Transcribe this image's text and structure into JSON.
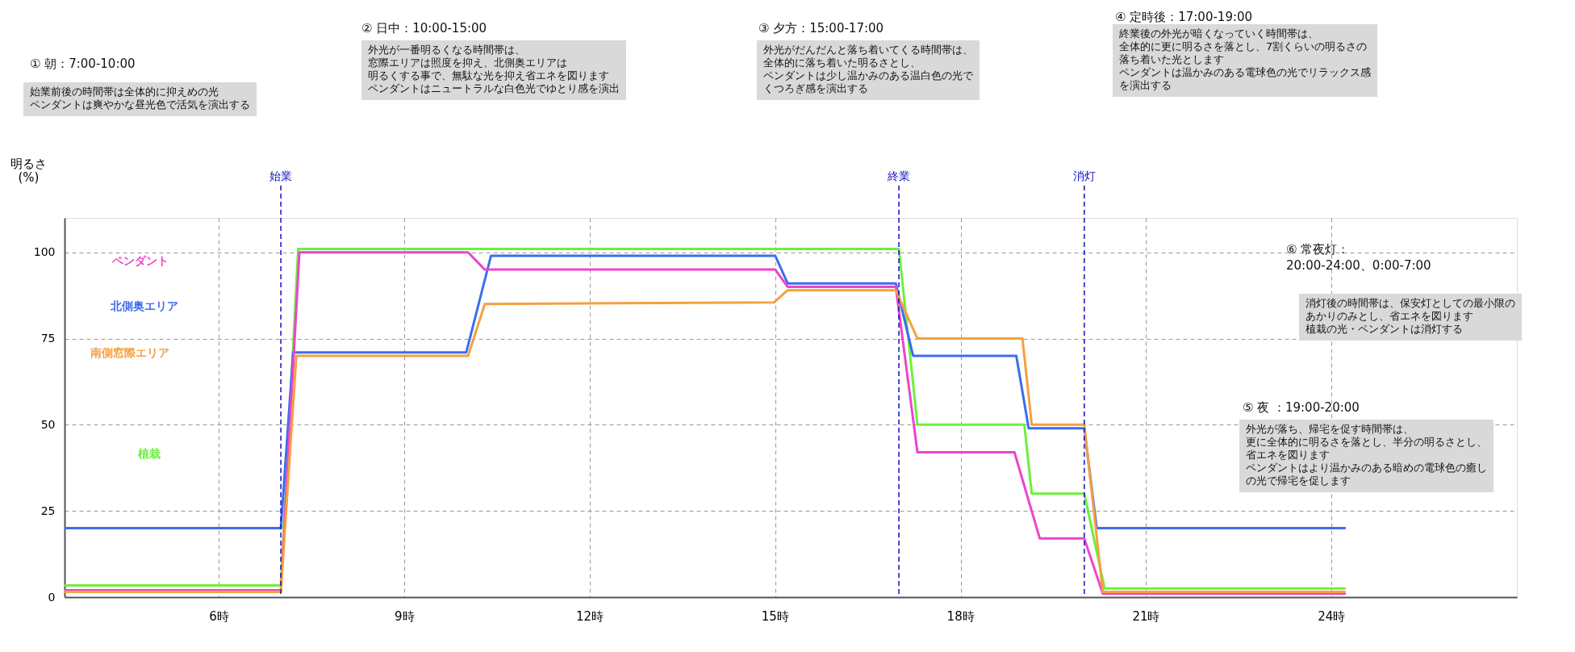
{
  "chart_data": {
    "type": "line",
    "ylabel": "明るさ\n(%)",
    "xlim": [
      3.5,
      27
    ],
    "ylim": [
      0,
      110
    ],
    "xticks": [
      {
        "value": 6,
        "label": "6時"
      },
      {
        "value": 9,
        "label": "9時"
      },
      {
        "value": 12,
        "label": "12時"
      },
      {
        "value": 15,
        "label": "15時"
      },
      {
        "value": 18,
        "label": "18時"
      },
      {
        "value": 21,
        "label": "21時"
      },
      {
        "value": 24,
        "label": "24時"
      }
    ],
    "yticks": [
      0,
      25,
      50,
      75,
      100
    ],
    "grid": true,
    "legend": false,
    "marker": "none",
    "line_style": "solid",
    "series": [
      {
        "name": "植栽",
        "color": "#6cf03c",
        "x": [
          3.5,
          7.0,
          7.28,
          17.0,
          17.3,
          19.03,
          19.15,
          20.0,
          20.33,
          24.23
        ],
        "values": [
          3.4,
          3.4,
          101,
          101,
          50,
          50,
          30,
          30,
          2.5,
          2.5
        ]
      },
      {
        "name": "北側奥エリア",
        "color": "#3c6cf0",
        "x": [
          3.5,
          7.0,
          7.2,
          10.0,
          10.4,
          15.0,
          15.2,
          16.95,
          17.23,
          18.9,
          19.1,
          20.0,
          20.2,
          24.23
        ],
        "values": [
          20,
          20,
          71,
          71,
          99,
          99,
          91,
          91,
          70,
          70,
          49,
          49,
          20,
          20
        ]
      },
      {
        "name": "ペンダント",
        "color": "#ee44cc",
        "x": [
          3.5,
          7.0,
          7.3,
          10.03,
          10.3,
          15.0,
          15.2,
          16.95,
          17.3,
          18.87,
          19.28,
          20.0,
          20.3,
          24.23
        ],
        "values": [
          2,
          2,
          100,
          100,
          95,
          95,
          90,
          90,
          42,
          42,
          17,
          17,
          1,
          1
        ]
      },
      {
        "name": "南側窓際エリア",
        "color": "#f5a040",
        "x": [
          3.5,
          7.0,
          7.25,
          10.03,
          10.3,
          14.98,
          15.2,
          16.95,
          17.3,
          19.0,
          19.15,
          20.0,
          20.3,
          24.23
        ],
        "values": [
          1.5,
          1.5,
          70,
          70,
          85,
          85.5,
          89,
          89,
          75,
          75,
          50,
          50,
          1.5,
          1.5
        ]
      }
    ],
    "ref_lines": [
      {
        "axis": "x",
        "value": 7,
        "label": "始業",
        "color": "#1010c0",
        "line_style": "dashed"
      },
      {
        "axis": "x",
        "value": 17,
        "label": "終業",
        "color": "#1010c0",
        "line_style": "dashed"
      },
      {
        "axis": "x",
        "value": 20,
        "label": "消灯",
        "color": "#1010c0",
        "line_style": "dashed"
      }
    ],
    "annotations": [
      "① 朝：7:00-10:00",
      "始業前後の時間帯は全体的に抑えめの光ペンダントは爽やかな昼光色で活気を演出する",
      "② 日中：10:00-15:00",
      "外光が一番明るくなる時間帯は、窓際エリアは照度を抑え、北側奥エリアは明るくする事で、無駄な光を抑え省エネを図りますペンダントはニュートラルな白色光でゆとり感を演出",
      "③ 夕方：15:00-17:00",
      "外光がだんだんと落ち着いてくる時間帯は、全体的に落ち着いた明るさとし、ペンダントは少し温かみのある温白色の光でくつろぎ感を演出する",
      "④ 定時後：17:00-19:00",
      "終業後の外光が暗くなっていく時間帯は、全体的に更に明るさを落とし、7割くらいの明るさの落ち着いた光としますペンダントは温かみのある電球色の光でリラックス感を演出する",
      "⑤ 夜 ：19:00-20:00",
      "外光が落ち、帰宅を促す時間帯は、更に全体的に明るさを落とし、半分の明るさとし、省エネを図りますペンダントはより温かみのある暗めの電球色の癒しの光で帰宅を促します",
      "⑥ 常夜灯：\n    20:00-24:00、0:00-7:00",
      "消灯後の時間帯は、保安灯としての最小限のあかりのみとし、省エネを図ります植栽の光・ペンダントは消灯する"
    ]
  }
}
